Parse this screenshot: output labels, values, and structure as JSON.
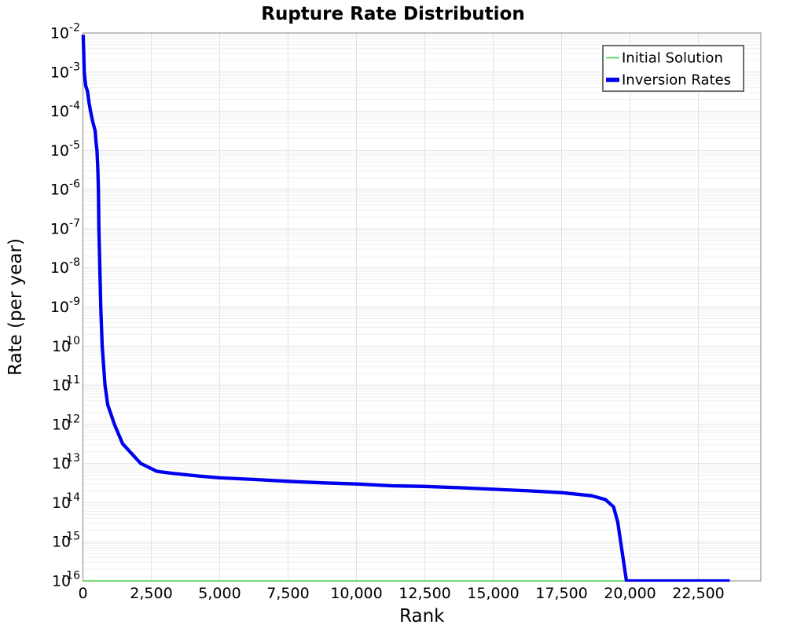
{
  "chart_data": {
    "type": "line",
    "title": "Rupture Rate Distribution",
    "xlabel": "Rank",
    "ylabel": "Rate (per year)",
    "xlim": [
      0,
      24784
    ],
    "x_ticks": [
      {
        "value": 0,
        "label": "0"
      },
      {
        "value": 2500,
        "label": "2,500"
      },
      {
        "value": 5000,
        "label": "5,000"
      },
      {
        "value": 7500,
        "label": "7,500"
      },
      {
        "value": 10000,
        "label": "10,000"
      },
      {
        "value": 12500,
        "label": "12,500"
      },
      {
        "value": 15000,
        "label": "15,000"
      },
      {
        "value": 17500,
        "label": "17,500"
      },
      {
        "value": 20000,
        "label": "20,000"
      },
      {
        "value": 22500,
        "label": "22,500"
      }
    ],
    "yscale": "log",
    "y_tick_exponents": [
      -2,
      -3,
      -4,
      -5,
      -6,
      -7,
      -8,
      -9,
      -10,
      -11,
      -12,
      -13,
      -14,
      -15,
      -16
    ],
    "ylim": [
      1e-16,
      0.01
    ],
    "grid": {
      "show_horizontal_minor": true,
      "show_vertical_at_ticks": true
    },
    "legend": {
      "position": "top-right",
      "entries": [
        "Initial Solution",
        "Inversion Rates"
      ]
    },
    "series": [
      {
        "name": "Initial Solution",
        "color": "#55d455",
        "width": 1.6,
        "points": [
          [
            0,
            1e-16
          ],
          [
            23650,
            1e-16
          ]
        ]
      },
      {
        "name": "Inversion Rates",
        "color": "#0000ee",
        "width": 4.3,
        "points": [
          [
            10,
            0.009
          ],
          [
            30,
            0.0032
          ],
          [
            49,
            0.001
          ],
          [
            100,
            0.00045
          ],
          [
            170,
            0.00032
          ],
          [
            215,
            0.00018
          ],
          [
            280,
            0.0001
          ],
          [
            355,
            5.5e-05
          ],
          [
            445,
            3.2e-05
          ],
          [
            480,
            1.6e-05
          ],
          [
            514,
            1e-05
          ],
          [
            545,
            3.2e-06
          ],
          [
            566,
            1e-06
          ],
          [
            575,
            3.2e-07
          ],
          [
            583,
            1e-07
          ],
          [
            600,
            3.2e-08
          ],
          [
            618,
            1e-08
          ],
          [
            635,
            3.2e-09
          ],
          [
            652,
            1e-09
          ],
          [
            678,
            3.2e-10
          ],
          [
            704,
            1e-10
          ],
          [
            755,
            3.2e-11
          ],
          [
            808,
            1e-11
          ],
          [
            905,
            3.2e-12
          ],
          [
            1152,
            1e-12
          ],
          [
            1451,
            3.2e-13
          ],
          [
            2112,
            1e-13
          ],
          [
            2700,
            6.3e-14
          ],
          [
            3300,
            5.6e-14
          ],
          [
            4200,
            4.8e-14
          ],
          [
            5000,
            4.3e-14
          ],
          [
            6300,
            3.9e-14
          ],
          [
            7500,
            3.5e-14
          ],
          [
            8800,
            3.2e-14
          ],
          [
            10000,
            3e-14
          ],
          [
            11300,
            2.7e-14
          ],
          [
            12500,
            2.6e-14
          ],
          [
            13800,
            2.4e-14
          ],
          [
            15000,
            2.2e-14
          ],
          [
            16300,
            2e-14
          ],
          [
            17500,
            1.8e-14
          ],
          [
            18600,
            1.5e-14
          ],
          [
            19100,
            1.2e-14
          ],
          [
            19400,
            7.8e-15
          ],
          [
            19550,
            3.2e-15
          ],
          [
            19700,
            6.3e-16
          ],
          [
            19870,
            1e-16
          ],
          [
            23650,
            1e-16
          ]
        ]
      }
    ],
    "colors": {
      "grid_minor": "#efefef",
      "grid_major": "#e2e2e2",
      "border": "#9a9a9a",
      "legend_border": "#707070",
      "text": "#000000"
    }
  }
}
